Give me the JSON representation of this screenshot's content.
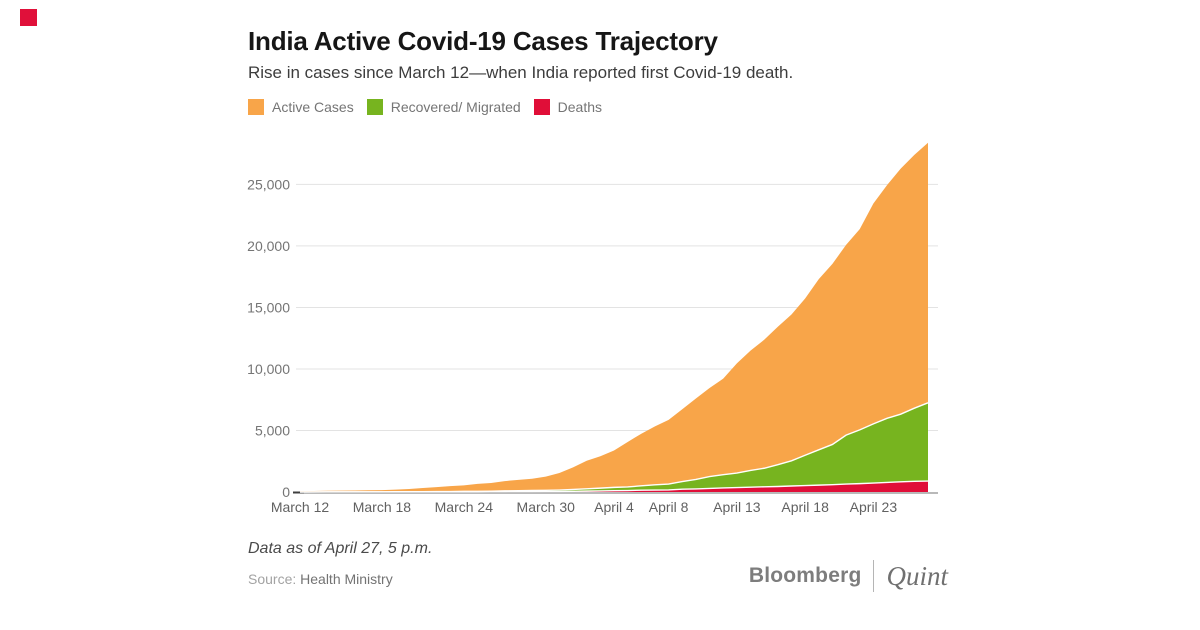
{
  "brand": {
    "mark_color": "#e0103a",
    "bloomberg": "Bloomberg",
    "quint": "Quint"
  },
  "header": {
    "title": "India Active Covid-19 Cases Trajectory",
    "subtitle": "Rise in cases since March 12—when India reported first Covid-19 death."
  },
  "legend": [
    {
      "label": "Active Cases",
      "color": "#F8A549"
    },
    {
      "label": "Recovered/ Migrated",
      "color": "#77B41F"
    },
    {
      "label": "Deaths",
      "color": "#E00E38"
    }
  ],
  "footer": {
    "note": "Data as of April 27, 5 p.m.",
    "source_label": "Source:",
    "source_value": "Health Ministry"
  },
  "chart_data": {
    "type": "area",
    "stacked": true,
    "title": "India Active Covid-19 Cases Trajectory",
    "xlabel": "",
    "ylabel": "",
    "grid": "horizontal",
    "legend_position": "top-left",
    "ylim": [
      0,
      28500
    ],
    "yticks": [
      0,
      5000,
      10000,
      15000,
      20000,
      25000
    ],
    "xticks": [
      "March 12",
      "March 18",
      "March 24",
      "March 30",
      "April 4",
      "April 8",
      "April 13",
      "April 18",
      "April 23"
    ],
    "x": [
      "March 12",
      "March 13",
      "March 14",
      "March 15",
      "March 16",
      "March 17",
      "March 18",
      "March 19",
      "March 20",
      "March 21",
      "March 22",
      "March 23",
      "March 24",
      "March 25",
      "March 26",
      "March 27",
      "March 28",
      "March 29",
      "March 30",
      "March 31",
      "April 1",
      "April 2",
      "April 3",
      "April 4",
      "April 5",
      "April 6",
      "April 7",
      "April 8",
      "April 9",
      "April 10",
      "April 11",
      "April 12",
      "April 13",
      "April 14",
      "April 15",
      "April 16",
      "April 17",
      "April 18",
      "April 19",
      "April 20",
      "April 21",
      "April 22",
      "April 23",
      "April 24",
      "April 25",
      "April 26",
      "April 27"
    ],
    "stack_order": "bottom_to_top",
    "series": [
      {
        "name": "Deaths",
        "color": "#E00E38",
        "values": [
          1,
          2,
          2,
          2,
          3,
          3,
          3,
          4,
          5,
          6,
          7,
          9,
          10,
          11,
          20,
          21,
          24,
          27,
          32,
          35,
          58,
          72,
          86,
          109,
          118,
          150,
          160,
          169,
          226,
          249,
          288,
          331,
          358,
          393,
          422,
          448,
          488,
          521,
          559,
          592,
          645,
          681,
          723,
          780,
          825,
          872,
          886
        ]
      },
      {
        "name": "Recovered/ Migrated",
        "color": "#77B41F",
        "values": [
          4,
          4,
          10,
          13,
          14,
          14,
          15,
          20,
          20,
          23,
          27,
          27,
          40,
          43,
          45,
          73,
          84,
          95,
          102,
          123,
          148,
          191,
          229,
          267,
          291,
          352,
          421,
          477,
          620,
          774,
          969,
          1080,
          1181,
          1359,
          1508,
          1768,
          2045,
          2463,
          2871,
          3273,
          3975,
          4370,
          4814,
          5210,
          5498,
          5939,
          6362
        ]
      },
      {
        "name": "Active Cases",
        "color": "#F8A549",
        "values": [
          70,
          76,
          90,
          98,
          103,
          125,
          138,
          170,
          219,
          301,
          362,
          444,
          486,
          603,
          662,
          793,
          879,
          958,
          1117,
          1382,
          1792,
          2280,
          2587,
          2998,
          3658,
          4233,
          4754,
          5219,
          5879,
          6577,
          7195,
          7799,
          8914,
          9735,
          10440,
          11214,
          11892,
          12738,
          13874,
          14680,
          15460,
          16319,
          17915,
          18952,
          19960,
          20589,
          21132
        ]
      }
    ]
  }
}
